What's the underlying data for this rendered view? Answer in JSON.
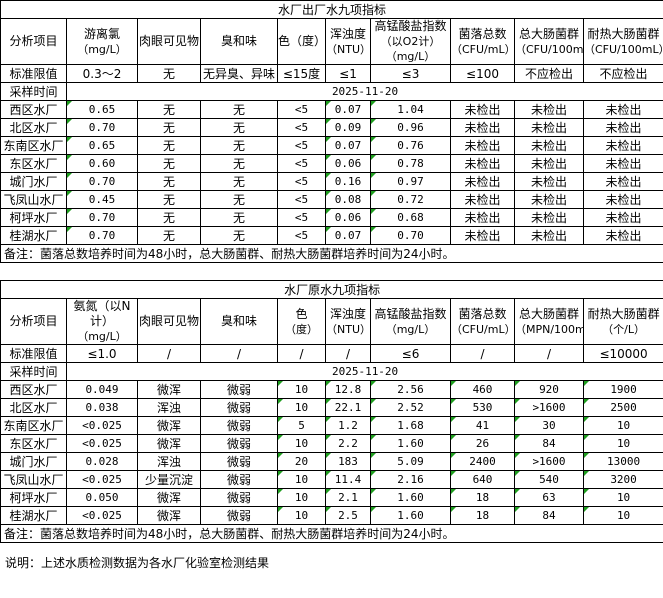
{
  "table1": {
    "title": "水厂出厂水九项指标",
    "headers": [
      [
        "分析项目"
      ],
      [
        "游离氯",
        "（mg/L）"
      ],
      [
        "肉眼可见物"
      ],
      [
        "臭和味"
      ],
      [
        "色（度）"
      ],
      [
        "浑浊度",
        "（NTU）"
      ],
      [
        "高锰酸盐指数",
        "（以O2计）",
        "（mg/L）"
      ],
      [
        "菌落总数",
        "（CFU/mL）"
      ],
      [
        "总大肠菌群",
        "（CFU/100mL）"
      ],
      [
        "耐热大肠菌群",
        "（CFU/100mL）"
      ]
    ],
    "standard": [
      "标准限值",
      "0.3～2",
      "无",
      "无异臭、异味",
      "≤15度",
      "≤1",
      "≤3",
      "≤100",
      "不应检出",
      "不应检出"
    ],
    "sample_time_label": "采样时间",
    "sample_time": "2025-11-20",
    "rows": [
      [
        "西区水厂",
        "0.65",
        "无",
        "无",
        "<5",
        "0.07",
        "1.04",
        "未检出",
        "未检出",
        "未检出"
      ],
      [
        "北区水厂",
        "0.70",
        "无",
        "无",
        "<5",
        "0.09",
        "0.96",
        "未检出",
        "未检出",
        "未检出"
      ],
      [
        "东南区水厂",
        "0.65",
        "无",
        "无",
        "<5",
        "0.07",
        "0.76",
        "未检出",
        "未检出",
        "未检出"
      ],
      [
        "东区水厂",
        "0.60",
        "无",
        "无",
        "<5",
        "0.06",
        "0.78",
        "未检出",
        "未检出",
        "未检出"
      ],
      [
        "城门水厂",
        "0.70",
        "无",
        "无",
        "<5",
        "0.16",
        "0.97",
        "未检出",
        "未检出",
        "未检出"
      ],
      [
        "飞凤山水厂",
        "0.45",
        "无",
        "无",
        "<5",
        "0.08",
        "0.72",
        "未检出",
        "未检出",
        "未检出"
      ],
      [
        "柯坪水厂",
        "0.70",
        "无",
        "无",
        "<5",
        "0.06",
        "0.68",
        "未检出",
        "未检出",
        "未检出"
      ],
      [
        "桂湖水厂",
        "0.70",
        "无",
        "无",
        "<5",
        "0.07",
        "0.70",
        "未检出",
        "未检出",
        "未检出"
      ]
    ],
    "note": "备注：菌落总数培养时间为48小时，总大肠菌群、耐热大肠菌群培养时间为24小时。"
  },
  "table2": {
    "title": "水厂原水九项指标",
    "headers": [
      [
        "分析项目"
      ],
      [
        "氨氮（以N计）",
        "（mg/L）"
      ],
      [
        "肉眼可见物"
      ],
      [
        "臭和味"
      ],
      [
        "色",
        "（度）"
      ],
      [
        "浑浊度",
        "（NTU）"
      ],
      [
        "高锰酸盐指数",
        "（mg/L）"
      ],
      [
        "菌落总数",
        "（CFU/mL）"
      ],
      [
        "总大肠菌群",
        "（MPN/100mL）"
      ],
      [
        "耐热大肠菌群",
        "（个/L）"
      ]
    ],
    "standard": [
      "标准限值",
      "≤1.0",
      "/",
      "/",
      "/",
      "/",
      "≤6",
      "/",
      "/",
      "≤10000"
    ],
    "sample_time_label": "采样时间",
    "sample_time": "2025-11-20",
    "rows": [
      [
        "西区水厂",
        "0.049",
        "微浑",
        "微弱",
        "10",
        "12.8",
        "2.56",
        "460",
        "920",
        "1900"
      ],
      [
        "北区水厂",
        "0.038",
        "浑浊",
        "微弱",
        "10",
        "22.1",
        "2.52",
        "530",
        ">1600",
        "2500"
      ],
      [
        "东南区水厂",
        "<0.025",
        "微浑",
        "微弱",
        "5",
        "1.2",
        "1.68",
        "41",
        "30",
        "10"
      ],
      [
        "东区水厂",
        "<0.025",
        "微浑",
        "微弱",
        "10",
        "2.2",
        "1.60",
        "26",
        "84",
        "10"
      ],
      [
        "城门水厂",
        "0.028",
        "浑浊",
        "微弱",
        "20",
        "183",
        "5.09",
        "2400",
        ">1600",
        "13000"
      ],
      [
        "飞凤山水厂",
        "<0.025",
        "少量沉淀",
        "微弱",
        "10",
        "11.4",
        "2.16",
        "640",
        "540",
        "3200"
      ],
      [
        "柯坪水厂",
        "0.050",
        "微浑",
        "微弱",
        "10",
        "2.1",
        "1.60",
        "18",
        "63",
        "10"
      ],
      [
        "桂湖水厂",
        "<0.025",
        "微浑",
        "微弱",
        "10",
        "2.5",
        "1.60",
        "18",
        "84",
        "10"
      ]
    ],
    "note": "备注：菌落总数培养时间为48小时，总大肠菌群、耐热大肠菌群培养时间为24小时。"
  },
  "explanation": "说明：上述水质检测数据为各水厂化验室检测结果"
}
